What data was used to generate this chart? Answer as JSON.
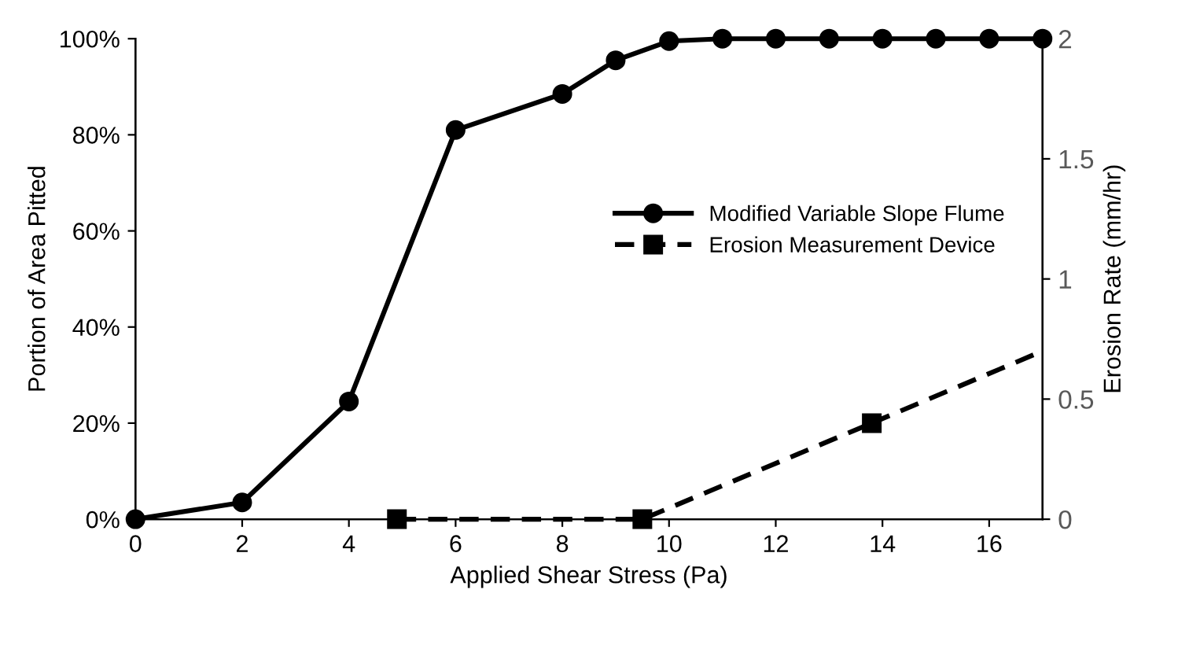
{
  "chart_data": {
    "type": "line",
    "xlabel": "Applied Shear Stress (Pa)",
    "ylabel": "Portion of Area Pitted",
    "y2label": "Erosion Rate (mm/hr)",
    "xlim": [
      0,
      17
    ],
    "xticks": [
      0,
      2,
      4,
      6,
      8,
      10,
      12,
      14,
      16
    ],
    "ylim": [
      0,
      100
    ],
    "yticks": [
      {
        "value": 0,
        "label": "0%"
      },
      {
        "value": 20,
        "label": "20%"
      },
      {
        "value": 40,
        "label": "40%"
      },
      {
        "value": 60,
        "label": "60%"
      },
      {
        "value": 80,
        "label": "80%"
      },
      {
        "value": 100,
        "label": "100%"
      }
    ],
    "y2lim": [
      0,
      2
    ],
    "y2ticks": [
      0,
      0.5,
      1,
      1.5,
      2
    ],
    "grid": false,
    "legend": "right",
    "series": [
      {
        "name": "Modified Variable Slope Flume",
        "color": "#000000",
        "marker": "circle",
        "line_style": "solid",
        "x": [
          0,
          2,
          4,
          6,
          8,
          9,
          10,
          11,
          12,
          13,
          14,
          15,
          16,
          17
        ],
        "values": [
          0,
          3.5,
          24.5,
          81,
          88.5,
          95.5,
          99.5,
          100,
          100,
          100,
          100,
          100,
          100,
          100
        ]
      },
      {
        "name": "Erosion Measurement Device",
        "color": "#000000",
        "marker": "square",
        "line_style": "dashed",
        "axis": "y2",
        "x": [
          4.9,
          9.5,
          13.8
        ],
        "values": [
          0,
          0,
          0.4
        ]
      },
      {
        "type": "line",
        "color": "#000000",
        "marker": "none",
        "line_style": "dashed",
        "axis": "y2",
        "x": [
          13.8,
          17
        ],
        "values": [
          0.4,
          0.7
        ]
      }
    ]
  }
}
